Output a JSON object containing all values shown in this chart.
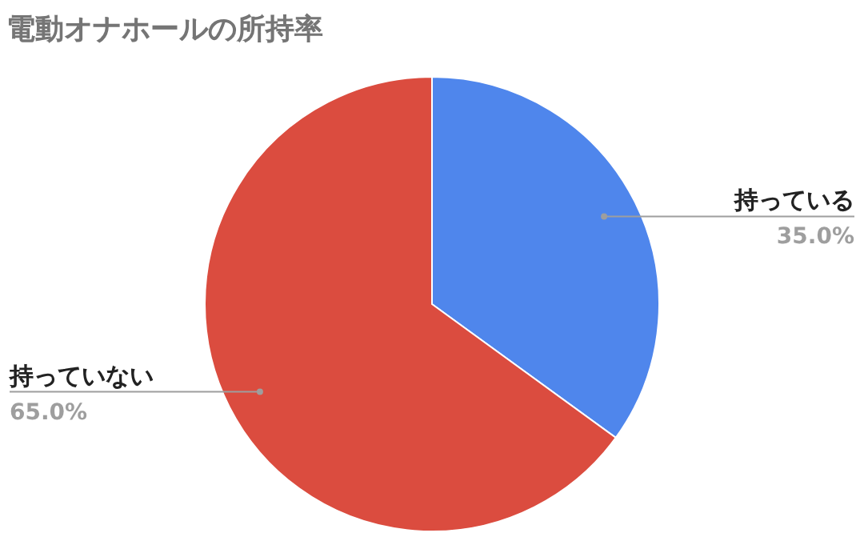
{
  "chart_data": {
    "type": "pie",
    "title": "電動オナホールの所持率",
    "categories": [
      "持っている",
      "持っていない"
    ],
    "values": [
      35,
      65
    ],
    "colors": [
      "#4f86ec",
      "#db4c3f"
    ],
    "value_labels": [
      "35.0%",
      "65.0%"
    ]
  }
}
